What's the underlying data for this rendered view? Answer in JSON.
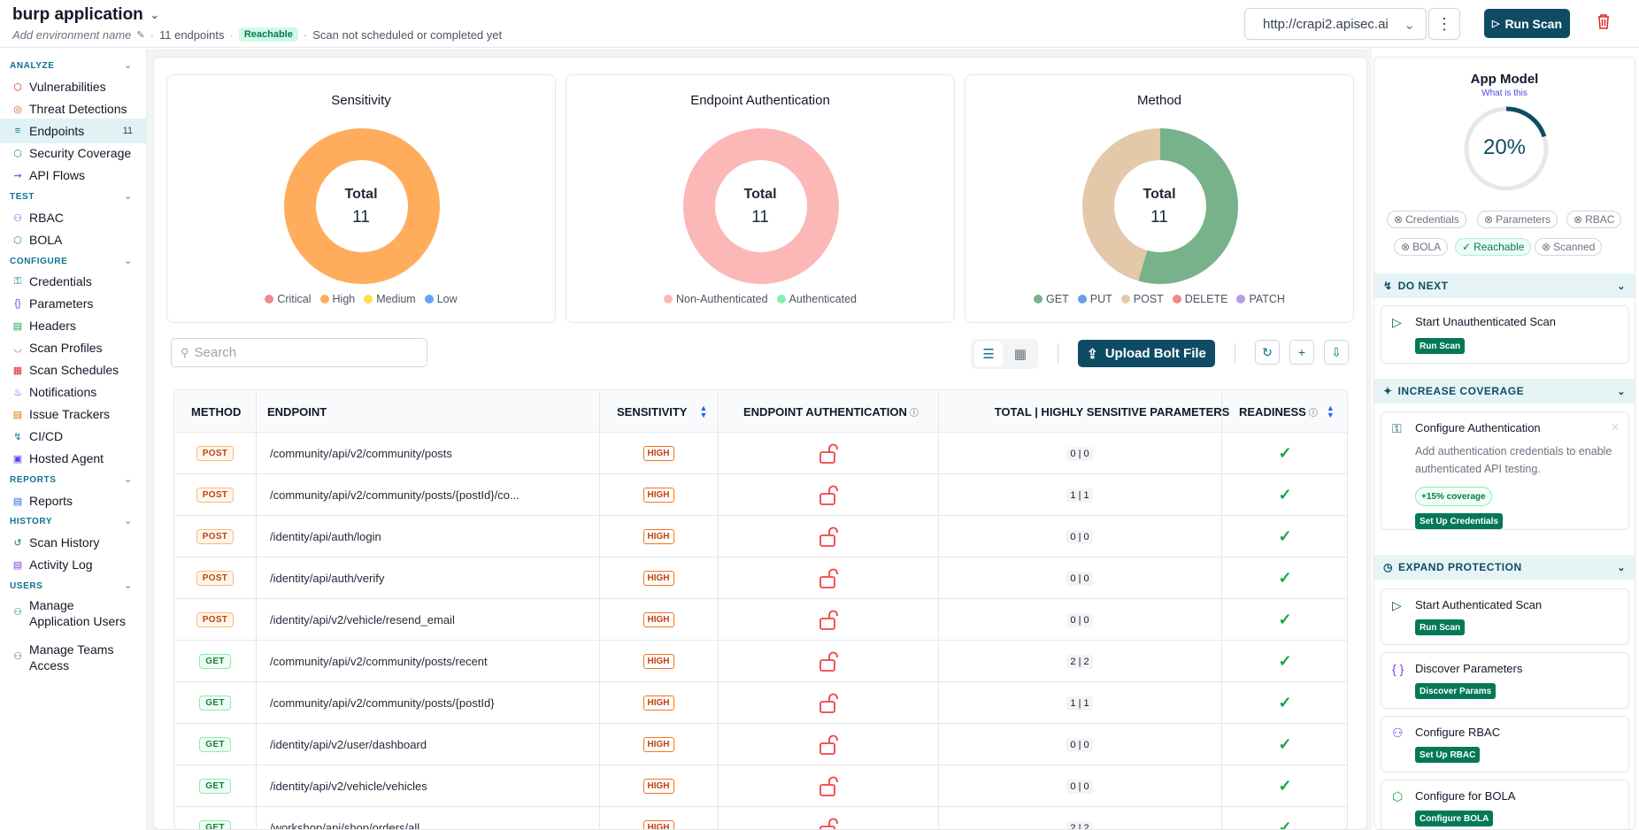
{
  "header": {
    "app_name": "burp application",
    "env_name": "Add environment name",
    "endpoint_count": "11 endpoints",
    "reachable_badge": "Reachable",
    "scan_status": "Scan not scheduled or completed yet",
    "url": "http://crapi2.apisec.ai",
    "run_scan": "Run Scan"
  },
  "sidebar": {
    "sections": [
      {
        "title": "ANALYZE",
        "items": [
          {
            "label": "Vulnerabilities",
            "icon": "bug-icon"
          },
          {
            "label": "Threat Detections",
            "icon": "target-icon"
          },
          {
            "label": "Endpoints",
            "icon": "list-icon",
            "count": "11",
            "active": true
          },
          {
            "label": "Security Coverage",
            "icon": "shield-icon"
          },
          {
            "label": "API Flows",
            "icon": "flow-icon"
          }
        ]
      },
      {
        "title": "TEST",
        "items": [
          {
            "label": "RBAC",
            "icon": "users-icon"
          },
          {
            "label": "BOLA",
            "icon": "shield-icon"
          }
        ]
      },
      {
        "title": "CONFIGURE",
        "items": [
          {
            "label": "Credentials",
            "icon": "key-icon"
          },
          {
            "label": "Parameters",
            "icon": "braces-icon"
          },
          {
            "label": "Headers",
            "icon": "table-icon"
          },
          {
            "label": "Scan Profiles",
            "icon": "gauge-icon"
          },
          {
            "label": "Scan Schedules",
            "icon": "calendar-icon"
          },
          {
            "label": "Notifications",
            "icon": "bell-icon"
          },
          {
            "label": "Issue Trackers",
            "icon": "tracker-icon"
          },
          {
            "label": "CI/CD",
            "icon": "pipeline-icon"
          },
          {
            "label": "Hosted Agent",
            "icon": "agent-icon"
          }
        ]
      },
      {
        "title": "REPORTS",
        "items": [
          {
            "label": "Reports",
            "icon": "document-icon"
          }
        ]
      },
      {
        "title": "HISTORY",
        "items": [
          {
            "label": "Scan History",
            "icon": "history-icon"
          },
          {
            "label": "Activity Log",
            "icon": "log-icon"
          }
        ]
      },
      {
        "title": "USERS",
        "items": [
          {
            "label": "Manage Application Users",
            "icon": "user-icon"
          },
          {
            "label": "Manage Teams Access",
            "icon": "team-icon"
          }
        ]
      }
    ]
  },
  "charts": [
    {
      "title": "Sensitivity",
      "total_label": "Total",
      "total": "11",
      "legend": [
        {
          "label": "Critical",
          "color": "#ef8a8a"
        },
        {
          "label": "High",
          "color": "#ffad5c"
        },
        {
          "label": "Medium",
          "color": "#fde047"
        },
        {
          "label": "Low",
          "color": "#60a5fa"
        }
      ]
    },
    {
      "title": "Endpoint Authentication",
      "total_label": "Total",
      "total": "11",
      "legend": [
        {
          "label": "Non-Authenticated",
          "color": "#fcb7b7"
        },
        {
          "label": "Authenticated",
          "color": "#86efac"
        }
      ]
    },
    {
      "title": "Method",
      "total_label": "Total",
      "total": "11",
      "legend": [
        {
          "label": "GET",
          "color": "#77b28a"
        },
        {
          "label": "PUT",
          "color": "#6b9ce6"
        },
        {
          "label": "POST",
          "color": "#e3c9aa"
        },
        {
          "label": "DELETE",
          "color": "#ef8a8a"
        },
        {
          "label": "PATCH",
          "color": "#b49ee0"
        }
      ]
    }
  ],
  "chart_data": [
    {
      "type": "pie",
      "title": "Sensitivity",
      "categories": [
        "Critical",
        "High",
        "Medium",
        "Low"
      ],
      "values": [
        0,
        11,
        0,
        0
      ]
    },
    {
      "type": "pie",
      "title": "Endpoint Authentication",
      "categories": [
        "Non-Authenticated",
        "Authenticated"
      ],
      "values": [
        11,
        0
      ]
    },
    {
      "type": "pie",
      "title": "Method",
      "categories": [
        "GET",
        "PUT",
        "POST",
        "DELETE",
        "PATCH"
      ],
      "values": [
        6,
        0,
        5,
        0,
        0
      ]
    }
  ],
  "toolbar": {
    "search_placeholder": "Search",
    "upload_label": "Upload Bolt File"
  },
  "table": {
    "headers": {
      "method": "METHOD",
      "endpoint": "ENDPOINT",
      "sensitivity": "SENSITIVITY",
      "auth": "ENDPOINT AUTHENTICATION",
      "params": "TOTAL | HIGHLY SENSITIVE PARAMETERS",
      "readiness": "READINESS"
    },
    "rows": [
      {
        "method": "POST",
        "endpoint": "/community/api/v2/community/posts",
        "sensitivity": "HIGH",
        "params": "0 | 0"
      },
      {
        "method": "POST",
        "endpoint": "/community/api/v2/community/posts/{postId}/co...",
        "sensitivity": "HIGH",
        "params": "1 | 1"
      },
      {
        "method": "POST",
        "endpoint": "/identity/api/auth/login",
        "sensitivity": "HIGH",
        "params": "0 | 0"
      },
      {
        "method": "POST",
        "endpoint": "/identity/api/auth/verify",
        "sensitivity": "HIGH",
        "params": "0 | 0"
      },
      {
        "method": "POST",
        "endpoint": "/identity/api/v2/vehicle/resend_email",
        "sensitivity": "HIGH",
        "params": "0 | 0"
      },
      {
        "method": "GET",
        "endpoint": "/community/api/v2/community/posts/recent",
        "sensitivity": "HIGH",
        "params": "2 | 2"
      },
      {
        "method": "GET",
        "endpoint": "/community/api/v2/community/posts/{postId}",
        "sensitivity": "HIGH",
        "params": "1 | 1"
      },
      {
        "method": "GET",
        "endpoint": "/identity/api/v2/user/dashboard",
        "sensitivity": "HIGH",
        "params": "0 | 0"
      },
      {
        "method": "GET",
        "endpoint": "/identity/api/v2/vehicle/vehicles",
        "sensitivity": "HIGH",
        "params": "0 | 0"
      },
      {
        "method": "GET",
        "endpoint": "/workshop/api/shop/orders/all",
        "sensitivity": "HIGH",
        "params": "2 | 2"
      }
    ]
  },
  "app_model": {
    "title": "App Model",
    "link": "What is this",
    "progress": "20%",
    "progress_value": 0.2,
    "chips": [
      {
        "label": "Credentials",
        "ok": false
      },
      {
        "label": "Parameters",
        "ok": false
      },
      {
        "label": "RBAC",
        "ok": false
      },
      {
        "label": "BOLA",
        "ok": false
      },
      {
        "label": "Reachable",
        "ok": true
      },
      {
        "label": "Scanned",
        "ok": false
      }
    ],
    "do_next": {
      "title": "DO NEXT",
      "card_title": "Start Unauthenticated Scan",
      "button": "Run Scan"
    },
    "increase": {
      "title": "INCREASE COVERAGE",
      "card_title": "Configure Authentication",
      "desc": "Add authentication credentials to enable authenticated API testing.",
      "badge": "+15% coverage",
      "button": "Set Up Credentials"
    },
    "expand": {
      "title": "EXPAND PROTECTION",
      "cards": [
        {
          "title": "Start Authenticated Scan",
          "button": "Run Scan",
          "icon": "play-icon"
        },
        {
          "title": "Discover Parameters",
          "button": "Discover Params",
          "icon": "braces-icon"
        },
        {
          "title": "Configure RBAC",
          "button": "Set Up RBAC",
          "icon": "user-key-icon"
        },
        {
          "title": "Configure for BOLA",
          "button": "Configure BOLA",
          "icon": "shield-check-icon"
        }
      ]
    }
  }
}
